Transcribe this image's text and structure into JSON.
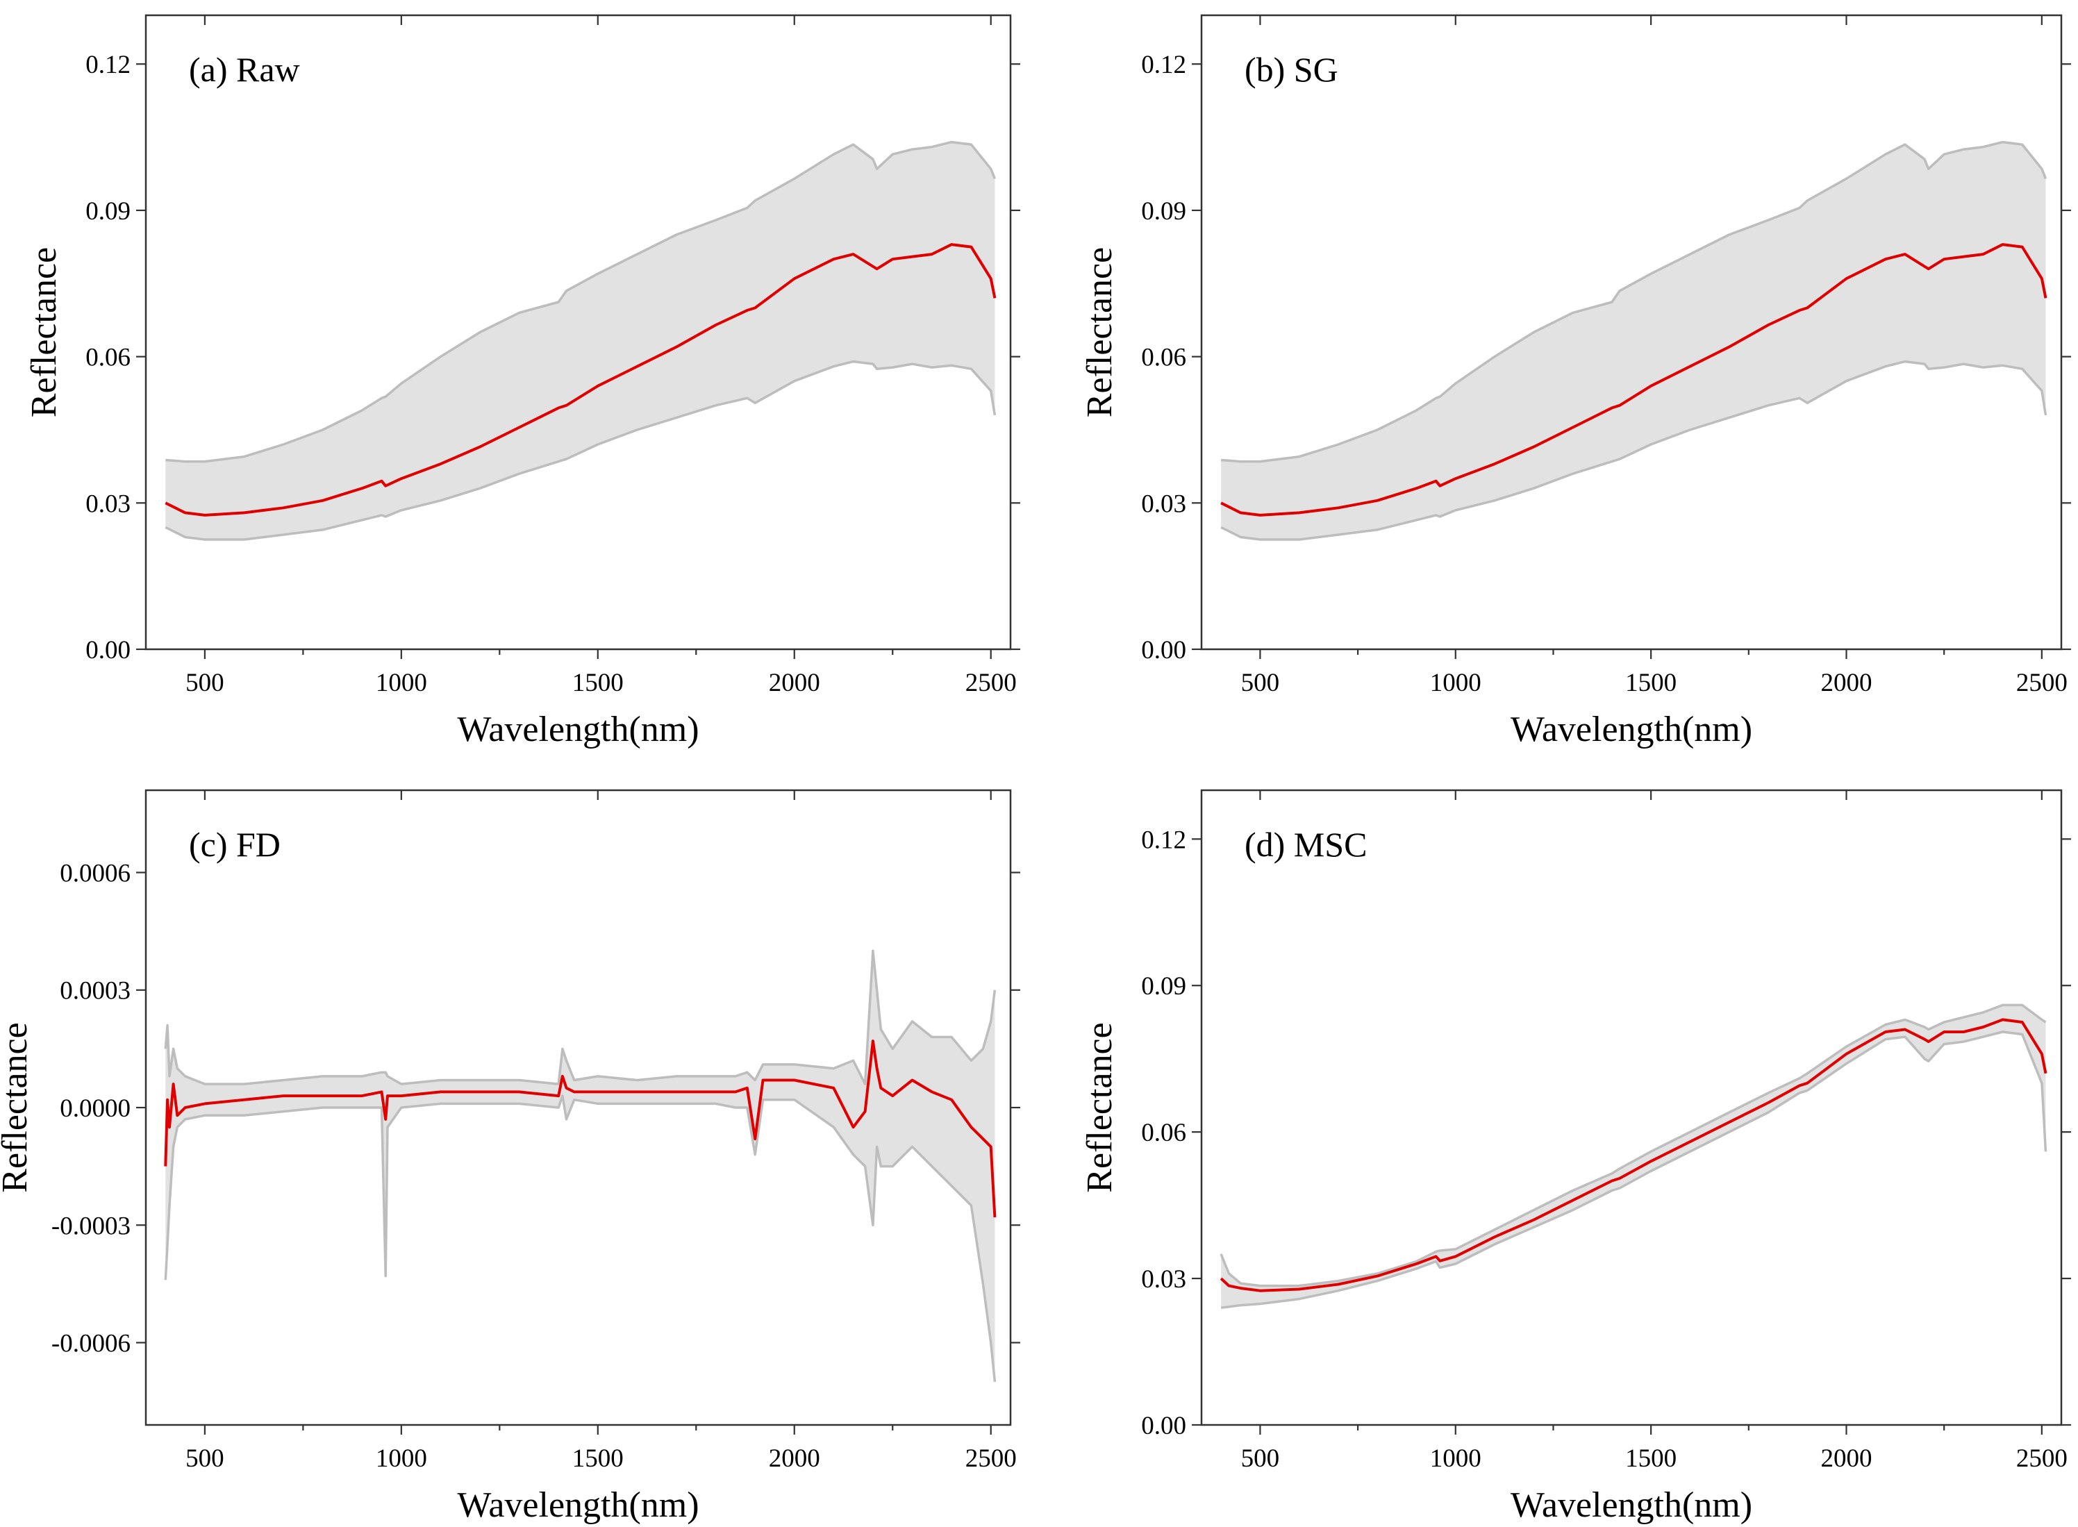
{
  "colors": {
    "band": "#e2e2e2",
    "bound_line": "#bdbdbd",
    "mean_line": "#e00000",
    "frame": "#333333"
  },
  "chart_data": [
    {
      "type": "area",
      "title": "(a) Raw",
      "xlabel": "Wavelength(nm)",
      "ylabel": "Reflectance",
      "xlim": [
        350,
        2550
      ],
      "ylim": [
        0,
        0.13
      ],
      "xticks": [
        500,
        1000,
        1500,
        2000,
        2500
      ],
      "yticks": [
        0,
        0.03,
        0.06,
        0.09,
        0.12
      ],
      "ytick_labels": [
        "0.00",
        "0.03",
        "0.06",
        "0.09",
        "0.12"
      ],
      "grid": false,
      "x": [
        400,
        450,
        500,
        600,
        700,
        800,
        900,
        950,
        960,
        1000,
        1100,
        1200,
        1300,
        1400,
        1420,
        1500,
        1600,
        1700,
        1800,
        1880,
        1900,
        2000,
        2100,
        2150,
        2200,
        2210,
        2250,
        2300,
        2350,
        2400,
        2450,
        2500,
        2510
      ],
      "upper": [
        0.0388,
        0.0385,
        0.0385,
        0.0395,
        0.042,
        0.045,
        0.049,
        0.0515,
        0.0518,
        0.0545,
        0.06,
        0.065,
        0.069,
        0.0712,
        0.0735,
        0.077,
        0.081,
        0.085,
        0.088,
        0.0905,
        0.092,
        0.0965,
        0.1015,
        0.1035,
        0.1005,
        0.0985,
        0.1015,
        0.1025,
        0.103,
        0.104,
        0.1035,
        0.0985,
        0.0965
      ],
      "mean": [
        0.03,
        0.028,
        0.0275,
        0.028,
        0.029,
        0.0305,
        0.033,
        0.0345,
        0.0335,
        0.035,
        0.038,
        0.0415,
        0.0455,
        0.0495,
        0.05,
        0.054,
        0.058,
        0.062,
        0.0665,
        0.0695,
        0.07,
        0.076,
        0.08,
        0.081,
        0.0785,
        0.078,
        0.08,
        0.0805,
        0.081,
        0.083,
        0.0825,
        0.076,
        0.072
      ],
      "lower": [
        0.025,
        0.023,
        0.0225,
        0.0225,
        0.0235,
        0.0245,
        0.0265,
        0.0275,
        0.0272,
        0.0285,
        0.0305,
        0.033,
        0.036,
        0.0385,
        0.039,
        0.042,
        0.045,
        0.0475,
        0.05,
        0.0515,
        0.0505,
        0.055,
        0.058,
        0.059,
        0.0585,
        0.0575,
        0.0578,
        0.0585,
        0.0578,
        0.0582,
        0.0575,
        0.053,
        0.048
      ]
    },
    {
      "type": "area",
      "title": "(b) SG",
      "xlabel": "Wavelength(nm)",
      "ylabel": "Reflectance",
      "xlim": [
        350,
        2550
      ],
      "ylim": [
        0,
        0.13
      ],
      "xticks": [
        500,
        1000,
        1500,
        2000,
        2500
      ],
      "yticks": [
        0,
        0.03,
        0.06,
        0.09,
        0.12
      ],
      "ytick_labels": [
        "0.00",
        "0.03",
        "0.06",
        "0.09",
        "0.12"
      ],
      "grid": false,
      "x": [
        400,
        450,
        500,
        600,
        700,
        800,
        900,
        950,
        960,
        1000,
        1100,
        1200,
        1300,
        1400,
        1420,
        1500,
        1600,
        1700,
        1800,
        1880,
        1900,
        2000,
        2100,
        2150,
        2200,
        2210,
        2250,
        2300,
        2350,
        2400,
        2450,
        2500,
        2510
      ],
      "upper": [
        0.0388,
        0.0385,
        0.0385,
        0.0395,
        0.042,
        0.045,
        0.049,
        0.0515,
        0.0518,
        0.0545,
        0.06,
        0.065,
        0.069,
        0.0712,
        0.0735,
        0.077,
        0.081,
        0.085,
        0.088,
        0.0905,
        0.092,
        0.0965,
        0.1015,
        0.1035,
        0.1005,
        0.0985,
        0.1015,
        0.1025,
        0.103,
        0.104,
        0.1035,
        0.0985,
        0.0965
      ],
      "mean": [
        0.03,
        0.028,
        0.0275,
        0.028,
        0.029,
        0.0305,
        0.033,
        0.0345,
        0.0335,
        0.035,
        0.038,
        0.0415,
        0.0455,
        0.0495,
        0.05,
        0.054,
        0.058,
        0.062,
        0.0665,
        0.0695,
        0.07,
        0.076,
        0.08,
        0.081,
        0.0785,
        0.078,
        0.08,
        0.0805,
        0.081,
        0.083,
        0.0825,
        0.076,
        0.072
      ],
      "lower": [
        0.025,
        0.023,
        0.0225,
        0.0225,
        0.0235,
        0.0245,
        0.0265,
        0.0275,
        0.0272,
        0.0285,
        0.0305,
        0.033,
        0.036,
        0.0385,
        0.039,
        0.042,
        0.045,
        0.0475,
        0.05,
        0.0515,
        0.0505,
        0.055,
        0.058,
        0.059,
        0.0585,
        0.0575,
        0.0578,
        0.0585,
        0.0578,
        0.0582,
        0.0575,
        0.053,
        0.048
      ]
    },
    {
      "type": "area",
      "title": "(c) FD",
      "xlabel": "Wavelength(nm)",
      "ylabel": "Reflectance",
      "xlim": [
        350,
        2550
      ],
      "ylim": [
        -0.00081,
        0.00081
      ],
      "xticks": [
        500,
        1000,
        1500,
        2000,
        2500
      ],
      "yticks": [
        -0.0006,
        -0.0003,
        0,
        0.0003,
        0.0006
      ],
      "ytick_labels": [
        "-0.0006",
        "-0.0003",
        "0.0000",
        "0.0003",
        "0.0006"
      ],
      "grid": false,
      "x": [
        400,
        405,
        410,
        420,
        430,
        450,
        500,
        600,
        700,
        800,
        900,
        950,
        960,
        965,
        1000,
        1100,
        1200,
        1300,
        1400,
        1410,
        1420,
        1440,
        1500,
        1600,
        1700,
        1800,
        1850,
        1880,
        1900,
        1920,
        2000,
        2100,
        2150,
        2180,
        2200,
        2210,
        2220,
        2250,
        2300,
        2350,
        2400,
        2450,
        2480,
        2500,
        2510
      ],
      "upper": [
        0.00015,
        0.00021,
        8e-05,
        0.00015,
        0.0001,
        8e-05,
        6e-05,
        6e-05,
        7e-05,
        8e-05,
        8e-05,
        9e-05,
        9e-05,
        8e-05,
        6e-05,
        7e-05,
        7e-05,
        7e-05,
        6e-05,
        0.00015,
        0.00012,
        7e-05,
        8e-05,
        7e-05,
        8e-05,
        8e-05,
        8e-05,
        9e-05,
        7e-05,
        0.00011,
        0.00011,
        0.0001,
        0.00012,
        6e-05,
        0.0004,
        0.0003,
        0.0002,
        0.00015,
        0.00022,
        0.00018,
        0.00018,
        0.00012,
        0.00015,
        0.00022,
        0.0003
      ],
      "mean": [
        -0.00015,
        2e-05,
        -5e-05,
        6e-05,
        -2e-05,
        0.0,
        1e-05,
        2e-05,
        3e-05,
        3e-05,
        3e-05,
        4e-05,
        -3e-05,
        3e-05,
        3e-05,
        4e-05,
        4e-05,
        4e-05,
        3e-05,
        8e-05,
        5e-05,
        4e-05,
        4e-05,
        4e-05,
        4e-05,
        4e-05,
        4e-05,
        5e-05,
        -8e-05,
        7e-05,
        7e-05,
        5e-05,
        -5e-05,
        -1e-05,
        0.00017,
        0.0001,
        5e-05,
        3e-05,
        7e-05,
        4e-05,
        2e-05,
        -5e-05,
        -8e-05,
        -0.0001,
        -0.00028
      ],
      "lower": [
        -0.00044,
        -0.00035,
        -0.00025,
        -0.0001,
        -5e-05,
        -3e-05,
        -2e-05,
        -2e-05,
        -1e-05,
        0.0,
        0.0,
        0.0,
        -0.00043,
        -5e-05,
        0.0,
        1e-05,
        1e-05,
        1e-05,
        0.0,
        3e-05,
        -3e-05,
        2e-05,
        1e-05,
        1e-05,
        1e-05,
        1e-05,
        0.0,
        0.0,
        -0.00012,
        2e-05,
        2e-05,
        -5e-05,
        -0.00012,
        -0.00015,
        -0.0003,
        -0.0001,
        -0.00015,
        -0.00015,
        -0.0001,
        -0.00015,
        -0.0002,
        -0.00025,
        -0.00045,
        -0.0006,
        -0.0007
      ]
    },
    {
      "type": "area",
      "title": "(d) MSC",
      "xlabel": "Wavelength(nm)",
      "ylabel": "Reflectance",
      "xlim": [
        350,
        2550
      ],
      "ylim": [
        0,
        0.13
      ],
      "xticks": [
        500,
        1000,
        1500,
        2000,
        2500
      ],
      "yticks": [
        0,
        0.03,
        0.06,
        0.09,
        0.12
      ],
      "ytick_labels": [
        "0.00",
        "0.03",
        "0.06",
        "0.09",
        "0.12"
      ],
      "grid": false,
      "x": [
        400,
        420,
        450,
        500,
        600,
        700,
        800,
        900,
        950,
        960,
        1000,
        1100,
        1200,
        1300,
        1400,
        1420,
        1500,
        1600,
        1700,
        1800,
        1880,
        1900,
        2000,
        2100,
        2150,
        2200,
        2210,
        2250,
        2300,
        2350,
        2400,
        2450,
        2500,
        2510
      ],
      "upper": [
        0.035,
        0.031,
        0.029,
        0.0285,
        0.0285,
        0.0295,
        0.031,
        0.0335,
        0.0355,
        0.0357,
        0.036,
        0.04,
        0.044,
        0.048,
        0.0515,
        0.0525,
        0.056,
        0.06,
        0.064,
        0.068,
        0.071,
        0.072,
        0.0775,
        0.082,
        0.083,
        0.0815,
        0.081,
        0.0825,
        0.0835,
        0.0845,
        0.086,
        0.086,
        0.083,
        0.0825
      ],
      "mean": [
        0.03,
        0.0285,
        0.028,
        0.0275,
        0.0278,
        0.0288,
        0.0305,
        0.033,
        0.0345,
        0.0336,
        0.0345,
        0.0385,
        0.042,
        0.046,
        0.05,
        0.0505,
        0.054,
        0.058,
        0.062,
        0.066,
        0.0695,
        0.07,
        0.076,
        0.0805,
        0.081,
        0.079,
        0.0785,
        0.0805,
        0.0805,
        0.0815,
        0.083,
        0.0825,
        0.076,
        0.072
      ],
      "lower": [
        0.024,
        0.0242,
        0.0245,
        0.0248,
        0.0258,
        0.0275,
        0.0295,
        0.032,
        0.0335,
        0.0322,
        0.033,
        0.037,
        0.0405,
        0.044,
        0.048,
        0.0485,
        0.052,
        0.056,
        0.06,
        0.064,
        0.068,
        0.0685,
        0.074,
        0.079,
        0.0795,
        0.075,
        0.0745,
        0.078,
        0.0785,
        0.0795,
        0.0805,
        0.08,
        0.07,
        0.056
      ]
    }
  ]
}
